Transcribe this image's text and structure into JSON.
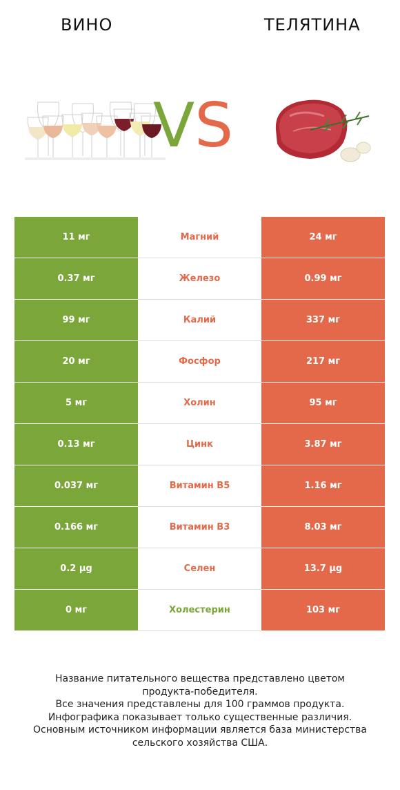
{
  "header": {
    "left_title": "ВИНО",
    "right_title": "ТЕЛЯТИНА",
    "vs_v": "V",
    "vs_s": "S"
  },
  "colors": {
    "left_accent": "#7aa63a",
    "right_accent": "#e4694a"
  },
  "rows": [
    {
      "left": "11 мг",
      "nutrient": "Магний",
      "right": "24 мг",
      "winner": "right"
    },
    {
      "left": "0.37 мг",
      "nutrient": "Железо",
      "right": "0.99 мг",
      "winner": "right"
    },
    {
      "left": "99 мг",
      "nutrient": "Калий",
      "right": "337 мг",
      "winner": "right"
    },
    {
      "left": "20 мг",
      "nutrient": "Фосфор",
      "right": "217 мг",
      "winner": "right"
    },
    {
      "left": "5 мг",
      "nutrient": "Холин",
      "right": "95 мг",
      "winner": "right"
    },
    {
      "left": "0.13 мг",
      "nutrient": "Цинк",
      "right": "3.87 мг",
      "winner": "right"
    },
    {
      "left": "0.037 мг",
      "nutrient": "Витамин B5",
      "right": "1.16 мг",
      "winner": "right"
    },
    {
      "left": "0.166 мг",
      "nutrient": "Витамин B3",
      "right": "8.03 мг",
      "winner": "right"
    },
    {
      "left": "0.2 µg",
      "nutrient": "Селен",
      "right": "13.7 µg",
      "winner": "right"
    },
    {
      "left": "0 мг",
      "nutrient": "Холестерин",
      "right": "103 мг",
      "winner": "left"
    }
  ],
  "footer": {
    "lines": [
      "Название питательного вещества представлено цветом",
      "продукта-победителя.",
      "Все значения представлены для 100 граммов продукта.",
      "Инфографика показывает только существенные различия.",
      "Основным источником информации является база министерства",
      "сельского хозяйства США."
    ]
  }
}
